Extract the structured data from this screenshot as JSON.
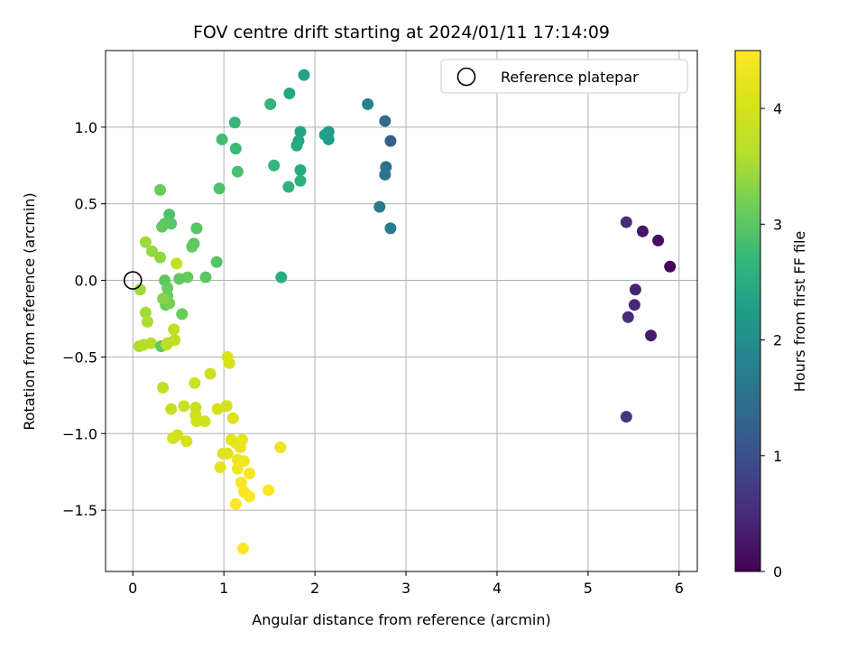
{
  "chart_data": {
    "type": "scatter",
    "title": "FOV centre drift starting at 2024/01/11 17:14:09",
    "xlabel": "Angular distance from reference (arcmin)",
    "ylabel": "Rotation from reference (arcmin)",
    "xlim": [
      -0.3,
      6.2
    ],
    "ylim": [
      -1.9,
      1.5
    ],
    "xticks": [
      0,
      1,
      2,
      3,
      4,
      5,
      6
    ],
    "xtick_labels": [
      "0",
      "1",
      "2",
      "3",
      "4",
      "5",
      "6"
    ],
    "yticks": [
      -1.5,
      -1.0,
      -0.5,
      0.0,
      0.5,
      1.0
    ],
    "ytick_labels": [
      "−1.5",
      "−1.0",
      "−0.5",
      "0.0",
      "0.5",
      "1.0"
    ],
    "grid": true,
    "legend": {
      "position": "top-right",
      "entries": [
        {
          "label": "Reference platepar",
          "marker": "open-circle"
        }
      ]
    },
    "reference_point": {
      "x": 0.0,
      "y": 0.0
    },
    "colorbar": {
      "label": "Hours from first FF file",
      "range": [
        0,
        4.5
      ],
      "ticks": [
        0,
        1,
        2,
        3,
        4
      ],
      "tick_labels": [
        "0",
        "1",
        "2",
        "3",
        "4"
      ],
      "colormap": "viridis"
    },
    "series": [
      {
        "name": "drift",
        "points": [
          {
            "x": 5.9,
            "y": 0.09,
            "c": 0.05
          },
          {
            "x": 5.77,
            "y": 0.26,
            "c": 0.15
          },
          {
            "x": 5.6,
            "y": 0.32,
            "c": 0.25
          },
          {
            "x": 5.69,
            "y": -0.36,
            "c": 0.3
          },
          {
            "x": 5.52,
            "y": -0.06,
            "c": 0.4
          },
          {
            "x": 5.51,
            "y": -0.16,
            "c": 0.45
          },
          {
            "x": 5.42,
            "y": 0.38,
            "c": 0.5
          },
          {
            "x": 5.44,
            "y": -0.24,
            "c": 0.55
          },
          {
            "x": 5.42,
            "y": -0.89,
            "c": 0.65
          },
          {
            "x": 2.83,
            "y": 0.91,
            "c": 1.25
          },
          {
            "x": 2.77,
            "y": 1.04,
            "c": 1.4
          },
          {
            "x": 2.78,
            "y": 0.74,
            "c": 1.5
          },
          {
            "x": 2.77,
            "y": 0.69,
            "c": 1.55
          },
          {
            "x": 2.71,
            "y": 0.48,
            "c": 1.65
          },
          {
            "x": 2.83,
            "y": 0.34,
            "c": 1.75
          },
          {
            "x": 2.58,
            "y": 1.15,
            "c": 1.85
          },
          {
            "x": 1.88,
            "y": 1.34,
            "c": 2.3
          },
          {
            "x": 1.72,
            "y": 1.22,
            "c": 2.4
          },
          {
            "x": 2.15,
            "y": 0.97,
            "c": 2.2
          },
          {
            "x": 2.15,
            "y": 0.92,
            "c": 2.25
          },
          {
            "x": 2.11,
            "y": 0.95,
            "c": 2.3
          },
          {
            "x": 1.84,
            "y": 0.97,
            "c": 2.35
          },
          {
            "x": 1.82,
            "y": 0.91,
            "c": 2.4
          },
          {
            "x": 1.8,
            "y": 0.88,
            "c": 2.45
          },
          {
            "x": 1.84,
            "y": 0.72,
            "c": 2.5
          },
          {
            "x": 1.84,
            "y": 0.65,
            "c": 2.55
          },
          {
            "x": 1.71,
            "y": 0.61,
            "c": 2.6
          },
          {
            "x": 1.55,
            "y": 0.75,
            "c": 2.65
          },
          {
            "x": 1.51,
            "y": 1.15,
            "c": 2.65
          },
          {
            "x": 1.63,
            "y": 0.02,
            "c": 2.5
          },
          {
            "x": 1.12,
            "y": 1.03,
            "c": 2.7
          },
          {
            "x": 1.13,
            "y": 0.86,
            "c": 2.75
          },
          {
            "x": 0.98,
            "y": 0.92,
            "c": 2.8
          },
          {
            "x": 1.15,
            "y": 0.71,
            "c": 2.85
          },
          {
            "x": 0.95,
            "y": 0.6,
            "c": 2.9
          },
          {
            "x": 0.92,
            "y": 0.12,
            "c": 2.95
          },
          {
            "x": 0.8,
            "y": 0.02,
            "c": 3.0
          },
          {
            "x": 0.7,
            "y": 0.34,
            "c": 2.95
          },
          {
            "x": 0.67,
            "y": 0.24,
            "c": 3.0
          },
          {
            "x": 0.65,
            "y": 0.22,
            "c": 3.05
          },
          {
            "x": 0.6,
            "y": 0.02,
            "c": 3.1
          },
          {
            "x": 0.51,
            "y": 0.01,
            "c": 3.05
          },
          {
            "x": 0.54,
            "y": -0.22,
            "c": 3.1
          },
          {
            "x": 0.4,
            "y": 0.43,
            "c": 2.9
          },
          {
            "x": 0.42,
            "y": 0.37,
            "c": 2.95
          },
          {
            "x": 0.35,
            "y": 0.37,
            "c": 3.0
          },
          {
            "x": 0.32,
            "y": 0.35,
            "c": 3.05
          },
          {
            "x": 0.3,
            "y": 0.59,
            "c": 3.1
          },
          {
            "x": 0.35,
            "y": 0.0,
            "c": 3.0
          },
          {
            "x": 0.38,
            "y": -0.05,
            "c": 3.1
          },
          {
            "x": 0.38,
            "y": -0.1,
            "c": 3.15
          },
          {
            "x": 0.36,
            "y": -0.16,
            "c": 3.1
          },
          {
            "x": 0.4,
            "y": -0.15,
            "c": 3.2
          },
          {
            "x": 0.33,
            "y": -0.12,
            "c": 3.3
          },
          {
            "x": 0.3,
            "y": 0.15,
            "c": 3.35
          },
          {
            "x": 0.21,
            "y": 0.19,
            "c": 3.4
          },
          {
            "x": 0.14,
            "y": 0.25,
            "c": 3.45
          },
          {
            "x": 0.08,
            "y": -0.06,
            "c": 3.45
          },
          {
            "x": 0.14,
            "y": -0.21,
            "c": 3.5
          },
          {
            "x": 0.16,
            "y": -0.27,
            "c": 3.55
          },
          {
            "x": 0.07,
            "y": -0.43,
            "c": 3.55
          },
          {
            "x": 0.12,
            "y": -0.42,
            "c": 3.6
          },
          {
            "x": 0.2,
            "y": -0.41,
            "c": 3.6
          },
          {
            "x": 0.31,
            "y": -0.43,
            "c": 3.05
          },
          {
            "x": 0.37,
            "y": -0.42,
            "c": 3.65
          },
          {
            "x": 0.38,
            "y": -0.41,
            "c": 3.7
          },
          {
            "x": 0.46,
            "y": -0.39,
            "c": 3.7
          },
          {
            "x": 0.45,
            "y": -0.32,
            "c": 3.75
          },
          {
            "x": 0.48,
            "y": 0.11,
            "c": 3.8
          },
          {
            "x": 0.33,
            "y": -0.7,
            "c": 3.75
          },
          {
            "x": 0.42,
            "y": -0.84,
            "c": 3.8
          },
          {
            "x": 0.56,
            "y": -0.82,
            "c": 3.85
          },
          {
            "x": 0.69,
            "y": -0.83,
            "c": 3.85
          },
          {
            "x": 0.68,
            "y": -0.67,
            "c": 3.9
          },
          {
            "x": 0.85,
            "y": -0.61,
            "c": 3.9
          },
          {
            "x": 0.69,
            "y": -0.88,
            "c": 3.9
          },
          {
            "x": 0.7,
            "y": -0.92,
            "c": 3.95
          },
          {
            "x": 0.79,
            "y": -0.92,
            "c": 3.95
          },
          {
            "x": 0.93,
            "y": -0.84,
            "c": 4.0
          },
          {
            "x": 1.03,
            "y": -0.82,
            "c": 4.0
          },
          {
            "x": 0.49,
            "y": -1.01,
            "c": 3.95
          },
          {
            "x": 0.44,
            "y": -1.03,
            "c": 3.95
          },
          {
            "x": 0.59,
            "y": -1.05,
            "c": 4.0
          },
          {
            "x": 1.04,
            "y": -0.5,
            "c": 4.05
          },
          {
            "x": 1.06,
            "y": -0.54,
            "c": 4.05
          },
          {
            "x": 1.1,
            "y": -0.9,
            "c": 4.1
          },
          {
            "x": 0.99,
            "y": -1.13,
            "c": 4.1
          },
          {
            "x": 1.04,
            "y": -1.13,
            "c": 4.15
          },
          {
            "x": 1.08,
            "y": -1.04,
            "c": 4.2
          },
          {
            "x": 1.13,
            "y": -1.06,
            "c": 4.2
          },
          {
            "x": 1.2,
            "y": -1.04,
            "c": 4.25
          },
          {
            "x": 1.18,
            "y": -1.09,
            "c": 4.25
          },
          {
            "x": 0.96,
            "y": -1.22,
            "c": 4.2
          },
          {
            "x": 1.15,
            "y": -1.17,
            "c": 4.3
          },
          {
            "x": 1.22,
            "y": -1.18,
            "c": 4.35
          },
          {
            "x": 1.15,
            "y": -1.23,
            "c": 4.35
          },
          {
            "x": 1.28,
            "y": -1.26,
            "c": 4.4
          },
          {
            "x": 1.19,
            "y": -1.32,
            "c": 4.4
          },
          {
            "x": 1.22,
            "y": -1.38,
            "c": 4.45
          },
          {
            "x": 1.28,
            "y": -1.41,
            "c": 4.45
          },
          {
            "x": 1.13,
            "y": -1.46,
            "c": 4.5
          },
          {
            "x": 1.49,
            "y": -1.37,
            "c": 4.45
          },
          {
            "x": 1.62,
            "y": -1.09,
            "c": 4.3
          },
          {
            "x": 1.21,
            "y": -1.75,
            "c": 4.5
          }
        ]
      }
    ]
  }
}
